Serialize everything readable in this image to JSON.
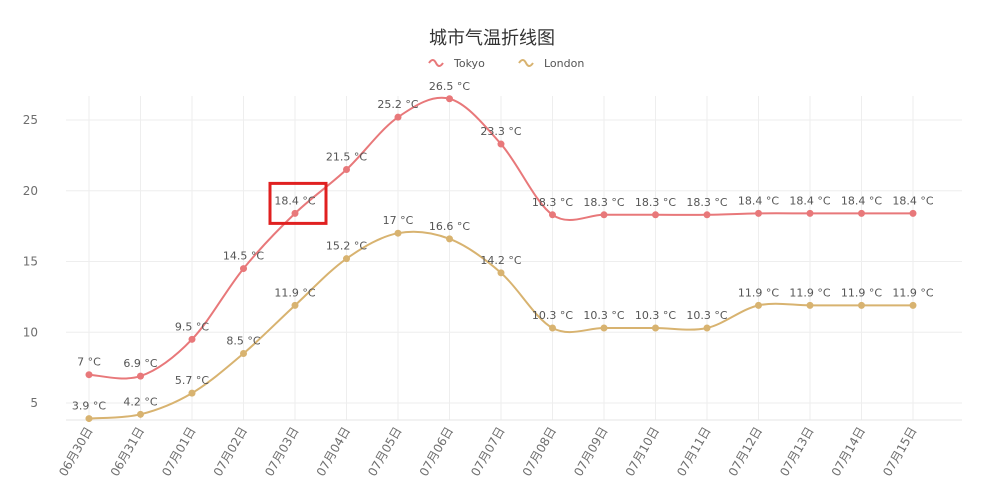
{
  "chart_data": {
    "type": "line",
    "title": "城市气温折线图",
    "xlabel": "",
    "ylabel": "",
    "unit": "°C",
    "categories": [
      "06月30日",
      "06月31日",
      "07月01日",
      "07月02日",
      "07月03日",
      "07月04日",
      "07月05日",
      "07月06日",
      "07月07日",
      "07月08日",
      "07月09日",
      "07月10日",
      "07月11日",
      "07月12日",
      "07月13日",
      "07月14日",
      "07月15日"
    ],
    "y_ticks": [
      5,
      10,
      15,
      20,
      25
    ],
    "ylim": [
      4,
      26.5
    ],
    "grid": true,
    "smooth": true,
    "legend_position": "top-center",
    "series": [
      {
        "name": "Tokyo",
        "color": "#e8787a",
        "values": [
          7,
          6.9,
          9.5,
          14.5,
          18.4,
          21.5,
          25.2,
          26.5,
          23.3,
          18.3,
          18.3,
          18.3,
          18.3,
          18.4,
          18.4,
          18.4,
          18.4
        ],
        "labels": [
          "7 °C",
          "6.9 °C",
          "9.5 °C",
          "14.5 °C",
          "18.4 °C",
          "21.5 °C",
          "25.2 °C",
          "26.5 °C",
          "23.3 °C",
          "18.3 °C",
          "18.3 °C",
          "18.3 °C",
          "18.3 °C",
          "18.4 °C",
          "18.4 °C",
          "18.4 °C",
          "18.4 °C"
        ]
      },
      {
        "name": "London",
        "color": "#d8b370",
        "values": [
          3.9,
          4.2,
          5.7,
          8.5,
          11.9,
          15.2,
          17,
          16.6,
          14.2,
          10.3,
          10.3,
          10.3,
          10.3,
          11.9,
          11.9,
          11.9,
          11.9
        ],
        "labels": [
          "3.9 °C",
          "4.2 °C",
          "5.7 °C",
          "8.5 °C",
          "11.9 °C",
          "15.2 °C",
          "17 °C",
          "16.6 °C",
          "14.2 °C",
          "10.3 °C",
          "10.3 °C",
          "10.3 °C",
          "10.3 °C",
          "11.9 °C",
          "11.9 °C",
          "11.9 °C",
          "11.9 °C"
        ]
      }
    ],
    "highlight": {
      "series": "Tokyo",
      "category": "07月03日",
      "color": "#e02020"
    }
  }
}
